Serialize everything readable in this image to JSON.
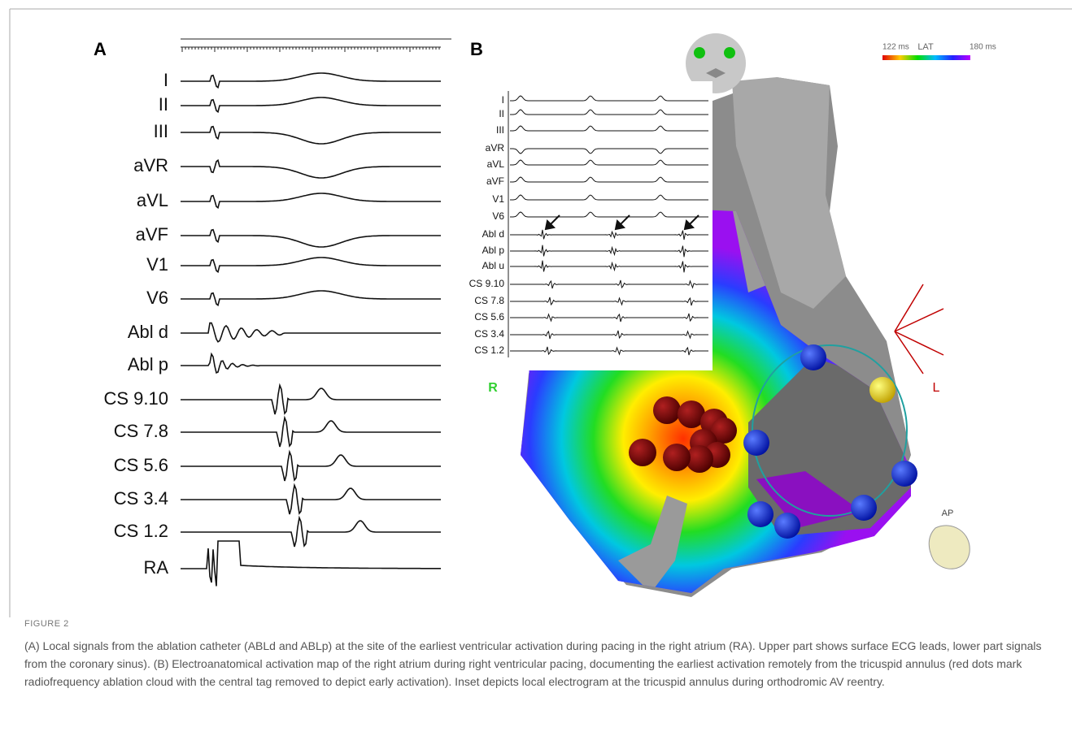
{
  "panel_a": {
    "label": "A",
    "leads": [
      "I",
      "II",
      "III",
      "aVR",
      "aVL",
      "aVF",
      "V1",
      "V6",
      "Abl d",
      "Abl p",
      "CS 9.10",
      "CS 7.8",
      "CS 5.6",
      "CS 3.4",
      "CS 1.2",
      "RA"
    ]
  },
  "panel_b": {
    "label": "B",
    "legend": {
      "min": "122 ms",
      "title": "LAT",
      "max": "180 ms"
    },
    "inset_leads": [
      "I",
      "II",
      "III",
      "aVR",
      "aVL",
      "aVF",
      "V1",
      "V6",
      "Abl d",
      "Abl p",
      "Abl u",
      "CS 9.10",
      "CS 7.8",
      "CS 5.6",
      "CS 3.4",
      "CS 1.2"
    ],
    "orientation": {
      "right": "R",
      "left": "L",
      "view": "AP"
    }
  },
  "figure": {
    "label": "FIGURE 2",
    "caption": "(A) Local signals from the ablation catheter (ABLd and ABLp) at the site of the earliest ventricular activation during pacing in the right atrium (RA). Upper part shows surface ECG leads, lower part signals from the coronary sinus). (B) Electroanatomical activation map of the right atrium during right ventricular pacing, documenting the earliest activation remotely from the tricuspid annulus (red dots mark radiofrequency ablation cloud with the central tag removed to depict early activation). Inset depicts local electrogram at the tricuspid annulus during orthodromic AV reentry."
  }
}
